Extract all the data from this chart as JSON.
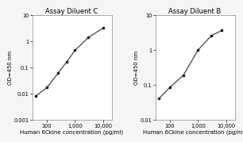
{
  "left": {
    "title": "Assay Diluent C",
    "x": [
      40,
      100,
      250,
      500,
      1000,
      3000,
      10000
    ],
    "y": [
      0.008,
      0.017,
      0.06,
      0.16,
      0.45,
      1.4,
      3.2
    ],
    "xlim": [
      30,
      20000
    ],
    "ylim": [
      0.001,
      10
    ],
    "xticks": [
      100,
      1000,
      10000
    ],
    "xtick_labels": [
      "100",
      "1,000",
      "10,000"
    ],
    "yticks": [
      0.001,
      0.01,
      0.1,
      1,
      10
    ],
    "ytick_labels": [
      "0.001",
      "0.01",
      "0.1",
      "1",
      "10"
    ],
    "xlabel": "Human 6Ckine concentration (pg/ml)",
    "ylabel": "OD=450 nm"
  },
  "right": {
    "title": "Assay Diluent B",
    "x": [
      40,
      100,
      300,
      1000,
      3000,
      7000
    ],
    "y": [
      0.04,
      0.085,
      0.19,
      1.0,
      2.6,
      3.6
    ],
    "xlim": [
      30,
      20000
    ],
    "ylim": [
      0.01,
      10
    ],
    "xticks": [
      100,
      1000,
      10000
    ],
    "xtick_labels": [
      "100",
      "1,000",
      "10,000"
    ],
    "yticks": [
      0.01,
      0.1,
      1,
      10
    ],
    "ytick_labels": [
      "0.01",
      "0.1",
      "1",
      "10"
    ],
    "xlabel": "Human 6Ckine concentration (pg/ml)",
    "ylabel": "OD=450 nm"
  },
  "line_color": "#444444",
  "marker_color": "#111111",
  "bg_color": "#f5f5f5",
  "plot_bg": "#ffffff",
  "title_fontsize": 6.0,
  "label_fontsize": 5.0,
  "tick_fontsize": 4.8
}
